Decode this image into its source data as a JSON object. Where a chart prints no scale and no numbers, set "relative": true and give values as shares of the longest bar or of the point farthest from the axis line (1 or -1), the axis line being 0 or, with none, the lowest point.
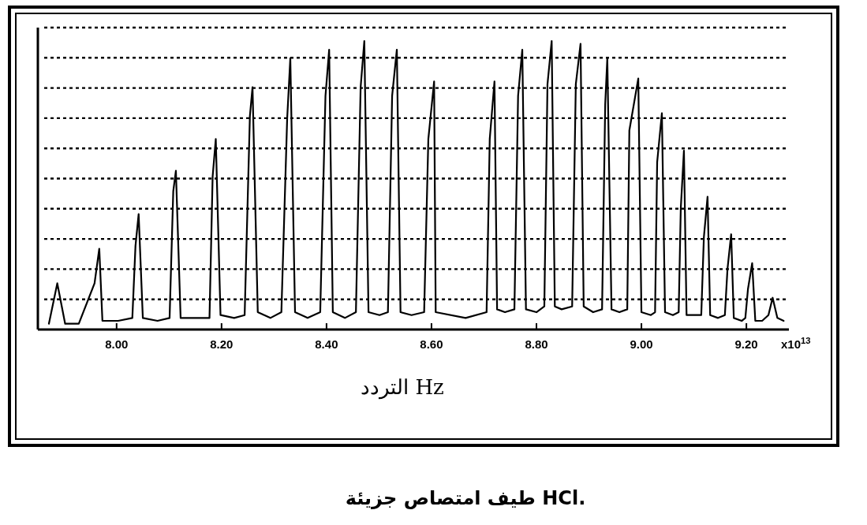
{
  "chart_data": {
    "type": "line",
    "title": "طيف امتصاص جزيئة HCl.",
    "xlabel": "التردد Hz",
    "relative": true,
    "grid": "y",
    "line_style": "solid",
    "color": "#000000",
    "xlim": [
      7.85,
      9.281
    ],
    "xticks": [
      {
        "value": 8,
        "label": "8.00"
      },
      {
        "value": 8.2,
        "label": "8.20"
      },
      {
        "value": 8.4,
        "label": "8.40"
      },
      {
        "value": 8.6,
        "label": "8.60"
      },
      {
        "value": 8.8,
        "label": "8.80"
      },
      {
        "value": 9,
        "label": "9.00"
      },
      {
        "value": 9.2,
        "label": "9.20"
      }
    ],
    "annotations": [
      "x10$^{13}$"
    ],
    "x": [
      7.871,
      7.887,
      7.902,
      7.928,
      7.958,
      7.967,
      7.973,
      8.003,
      8.03,
      8.036,
      8.042,
      8.05,
      8.078,
      8.101,
      8.108,
      8.113,
      8.122,
      8.153,
      8.177,
      8.183,
      8.189,
      8.198,
      8.224,
      8.244,
      8.254,
      8.259,
      8.269,
      8.293,
      8.314,
      8.325,
      8.331,
      8.34,
      8.364,
      8.388,
      8.398,
      8.405,
      8.412,
      8.435,
      8.456,
      8.465,
      8.472,
      8.48,
      8.501,
      8.517,
      8.525,
      8.534,
      8.541,
      8.562,
      8.586,
      8.594,
      8.605,
      8.608,
      8.665,
      8.705,
      8.711,
      8.72,
      8.725,
      8.74,
      8.758,
      8.765,
      8.773,
      8.78,
      8.8,
      8.815,
      8.821,
      8.829,
      8.835,
      8.848,
      8.868,
      8.875,
      8.884,
      8.89,
      8.908,
      8.925,
      8.931,
      8.935,
      8.943,
      8.958,
      8.973,
      8.977,
      8.994,
      9.0,
      9.018,
      9.026,
      9.03,
      9.039,
      9.045,
      9.06,
      9.071,
      9.075,
      9.081,
      9.086,
      9.101,
      9.114,
      9.119,
      9.126,
      9.131,
      9.146,
      9.159,
      9.164,
      9.171,
      9.176,
      9.191,
      9.198,
      9.203,
      9.211,
      9.217,
      9.23,
      9.242,
      9.25,
      9.259,
      9.271
    ],
    "values": [
      0.02,
      0.16,
      0.02,
      0.02,
      0.16,
      0.28,
      0.03,
      0.03,
      0.04,
      0.29,
      0.4,
      0.04,
      0.03,
      0.04,
      0.48,
      0.55,
      0.04,
      0.04,
      0.04,
      0.53,
      0.66,
      0.05,
      0.04,
      0.05,
      0.74,
      0.84,
      0.06,
      0.04,
      0.06,
      0.73,
      0.94,
      0.06,
      0.04,
      0.06,
      0.81,
      0.97,
      0.06,
      0.04,
      0.06,
      0.84,
      1.0,
      0.06,
      0.05,
      0.06,
      0.81,
      0.97,
      0.06,
      0.05,
      0.06,
      0.66,
      0.86,
      0.06,
      0.04,
      0.06,
      0.66,
      0.86,
      0.07,
      0.06,
      0.07,
      0.81,
      0.97,
      0.07,
      0.06,
      0.08,
      0.85,
      1.0,
      0.08,
      0.07,
      0.08,
      0.85,
      0.99,
      0.08,
      0.06,
      0.07,
      0.78,
      0.94,
      0.07,
      0.06,
      0.07,
      0.69,
      0.87,
      0.06,
      0.05,
      0.06,
      0.58,
      0.75,
      0.06,
      0.05,
      0.06,
      0.42,
      0.62,
      0.05,
      0.05,
      0.05,
      0.32,
      0.46,
      0.05,
      0.04,
      0.05,
      0.21,
      0.33,
      0.04,
      0.03,
      0.04,
      0.14,
      0.23,
      0.03,
      0.03,
      0.05,
      0.11,
      0.04,
      0.03
    ]
  }
}
